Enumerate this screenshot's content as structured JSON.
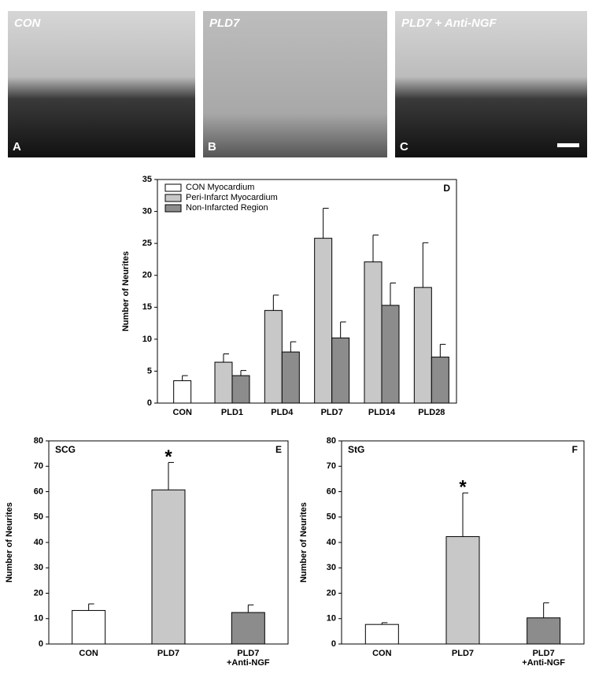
{
  "images": [
    {
      "title": "CON",
      "letter": "A"
    },
    {
      "title": "PLD7",
      "letter": "B"
    },
    {
      "title": "PLD7 + Anti-NGF",
      "letter": "C"
    }
  ],
  "chart_data": [
    {
      "type": "bar",
      "label": "D",
      "ylabel": "Number of Neurites",
      "categories": [
        "CON",
        "PLD1",
        "PLD4",
        "PLD7",
        "PLD14",
        "PLD28"
      ],
      "series": [
        {
          "name": "CON Myocardium",
          "color": "#ffffff",
          "values": [
            3.5,
            null,
            null,
            null,
            null,
            null
          ],
          "errors": [
            0.8,
            null,
            null,
            null,
            null,
            null
          ]
        },
        {
          "name": "Peri-Infarct Myocardium",
          "color": "#c8c8c8",
          "values": [
            null,
            6.4,
            14.5,
            25.8,
            22.1,
            18.1
          ],
          "errors": [
            null,
            1.3,
            2.4,
            4.7,
            4.2,
            7.0
          ]
        },
        {
          "name": "Non-Infarcted Region",
          "color": "#8c8c8c",
          "values": [
            null,
            4.3,
            8.0,
            10.2,
            15.3,
            7.2
          ],
          "errors": [
            null,
            0.8,
            1.6,
            2.5,
            3.5,
            2.0
          ]
        }
      ],
      "ylim": [
        0,
        35
      ],
      "yticks": [
        0,
        5,
        10,
        15,
        20,
        25,
        30,
        35
      ],
      "legend": "top-left"
    },
    {
      "type": "bar",
      "title": "SCG",
      "label": "E",
      "ylabel": "Number of Neurites",
      "categories": [
        "CON",
        "PLD7",
        "PLD7 +Anti-NGF"
      ],
      "values": [
        13.2,
        60.7,
        12.4
      ],
      "errors": [
        2.6,
        10.8,
        3.0
      ],
      "colors": [
        "#ffffff",
        "#c8c8c8",
        "#8c8c8c"
      ],
      "annotations": [
        {
          "text": "*",
          "category": "PLD7"
        }
      ],
      "ylim": [
        0,
        80
      ],
      "yticks": [
        0,
        10,
        20,
        30,
        40,
        50,
        60,
        70,
        80
      ]
    },
    {
      "type": "bar",
      "title": "StG",
      "label": "F",
      "ylabel": "Number of Neurites",
      "categories": [
        "CON",
        "PLD7",
        "PLD7 +Anti-NGF"
      ],
      "values": [
        7.7,
        42.3,
        10.3
      ],
      "errors": [
        0.7,
        17.2,
        5.9
      ],
      "colors": [
        "#ffffff",
        "#c8c8c8",
        "#8c8c8c"
      ],
      "annotations": [
        {
          "text": "*",
          "category": "PLD7"
        }
      ],
      "ylim": [
        0,
        80
      ],
      "yticks": [
        0,
        10,
        20,
        30,
        40,
        50,
        60,
        70,
        80
      ]
    }
  ]
}
